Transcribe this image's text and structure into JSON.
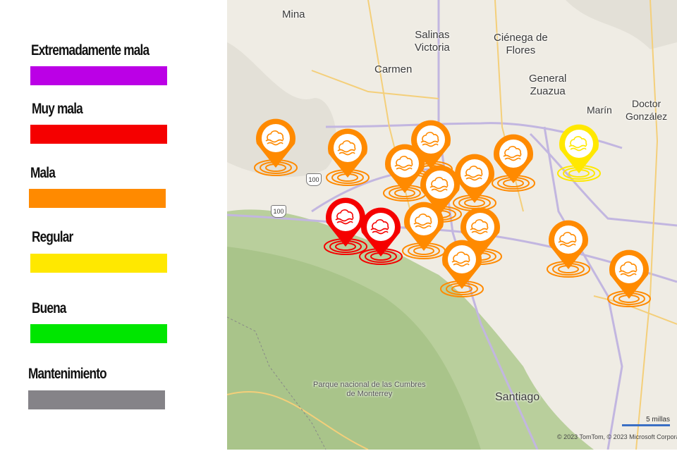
{
  "legend": {
    "items": [
      {
        "label": "Extremadamente mala",
        "color": "#bb00e6"
      },
      {
        "label": "Muy mala",
        "color": "#f50000"
      },
      {
        "label": "Mala",
        "color": "#ff8a00"
      },
      {
        "label": "Regular",
        "color": "#ffe800"
      },
      {
        "label": "Buena",
        "color": "#00e600"
      },
      {
        "label": "Mantenimiento",
        "color": "#858388"
      }
    ]
  },
  "map": {
    "places": {
      "mina": "Mina",
      "salinas": "Salinas\nVictoria",
      "cienega": "Ciénega de\nFlores",
      "carmen": "Carmen",
      "zuazua": "General\nZuazua",
      "marin": "Marín",
      "gonzalez": "Doctor\nGonzález",
      "santiago": "Santiago",
      "parque": "Parque nacional de las Cumbres\nde Monterrey"
    },
    "highway_shields": [
      "100",
      "100"
    ],
    "scale_label": "5 millas",
    "copyright": "© 2023 TomTom, © 2023 Microsoft Corporation",
    "station_icon": "air-quality-cloud-icon",
    "stations": [
      {
        "status": "Mala"
      },
      {
        "status": "Mala"
      },
      {
        "status": "Mala"
      },
      {
        "status": "Mala"
      },
      {
        "status": "Mala"
      },
      {
        "status": "Mala"
      },
      {
        "status": "Mala"
      },
      {
        "status": "Regular"
      },
      {
        "status": "Muy mala"
      },
      {
        "status": "Muy mala"
      },
      {
        "status": "Mala"
      },
      {
        "status": "Mala"
      },
      {
        "status": "Mala"
      },
      {
        "status": "Mala"
      },
      {
        "status": "Mala"
      }
    ]
  }
}
